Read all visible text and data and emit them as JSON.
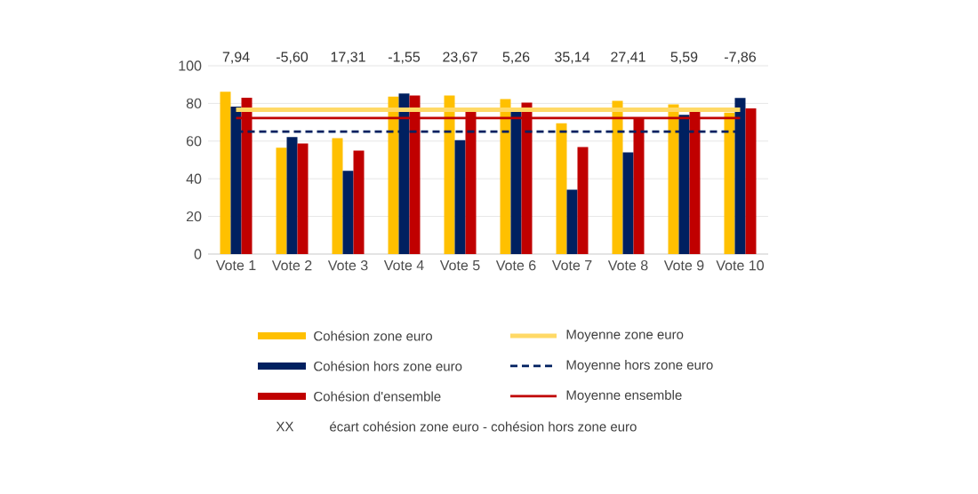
{
  "chart_data": {
    "type": "bar",
    "categories": [
      "Vote 1",
      "Vote 2",
      "Vote 3",
      "Vote 4",
      "Vote 5",
      "Vote 6",
      "Vote 7",
      "Vote 8",
      "Vote 9",
      "Vote 10"
    ],
    "series": [
      {
        "name": "Cohésion zone euro",
        "color": "#ffc000",
        "values": [
          86.2,
          56.5,
          61.5,
          83.6,
          84.2,
          82.3,
          69.4,
          81.4,
          79.5,
          75.1
        ]
      },
      {
        "name": "Cohésion hors zone euro",
        "color": "#002060",
        "values": [
          78.3,
          62.1,
          44.2,
          85.2,
          60.5,
          77.0,
          34.2,
          54.0,
          73.9,
          82.9
        ]
      },
      {
        "name": "Cohésion d'ensemble",
        "color": "#c00000",
        "values": [
          83.0,
          58.7,
          54.9,
          84.2,
          76.7,
          80.4,
          56.8,
          71.9,
          77.0,
          77.3
        ]
      }
    ],
    "ref_lines": [
      {
        "axis": "y",
        "value": 76.7,
        "label": "Moyenne zone euro",
        "color": "#ffd966",
        "line_style": "solid"
      },
      {
        "axis": "y",
        "value": 65.0,
        "label": "Moyenne hors zone euro",
        "color": "#002060",
        "line_style": "dashed"
      },
      {
        "axis": "y",
        "value": 72.2,
        "label": "Moyenne ensemble",
        "color": "#c00000",
        "line_style": "solid"
      }
    ],
    "annotations": [
      "7,94",
      "-5,60",
      "17,31",
      "-1,55",
      "23,67",
      "5,26",
      "35,14",
      "27,41",
      "5,59",
      "-7,86",
      "XX",
      "écart  cohésion zone euro - cohésion hors zone euro"
    ],
    "ylim": [
      0,
      100
    ],
    "yticks": [
      0,
      20,
      40,
      60,
      80,
      100
    ],
    "grid": "y",
    "legend": "bottom"
  }
}
